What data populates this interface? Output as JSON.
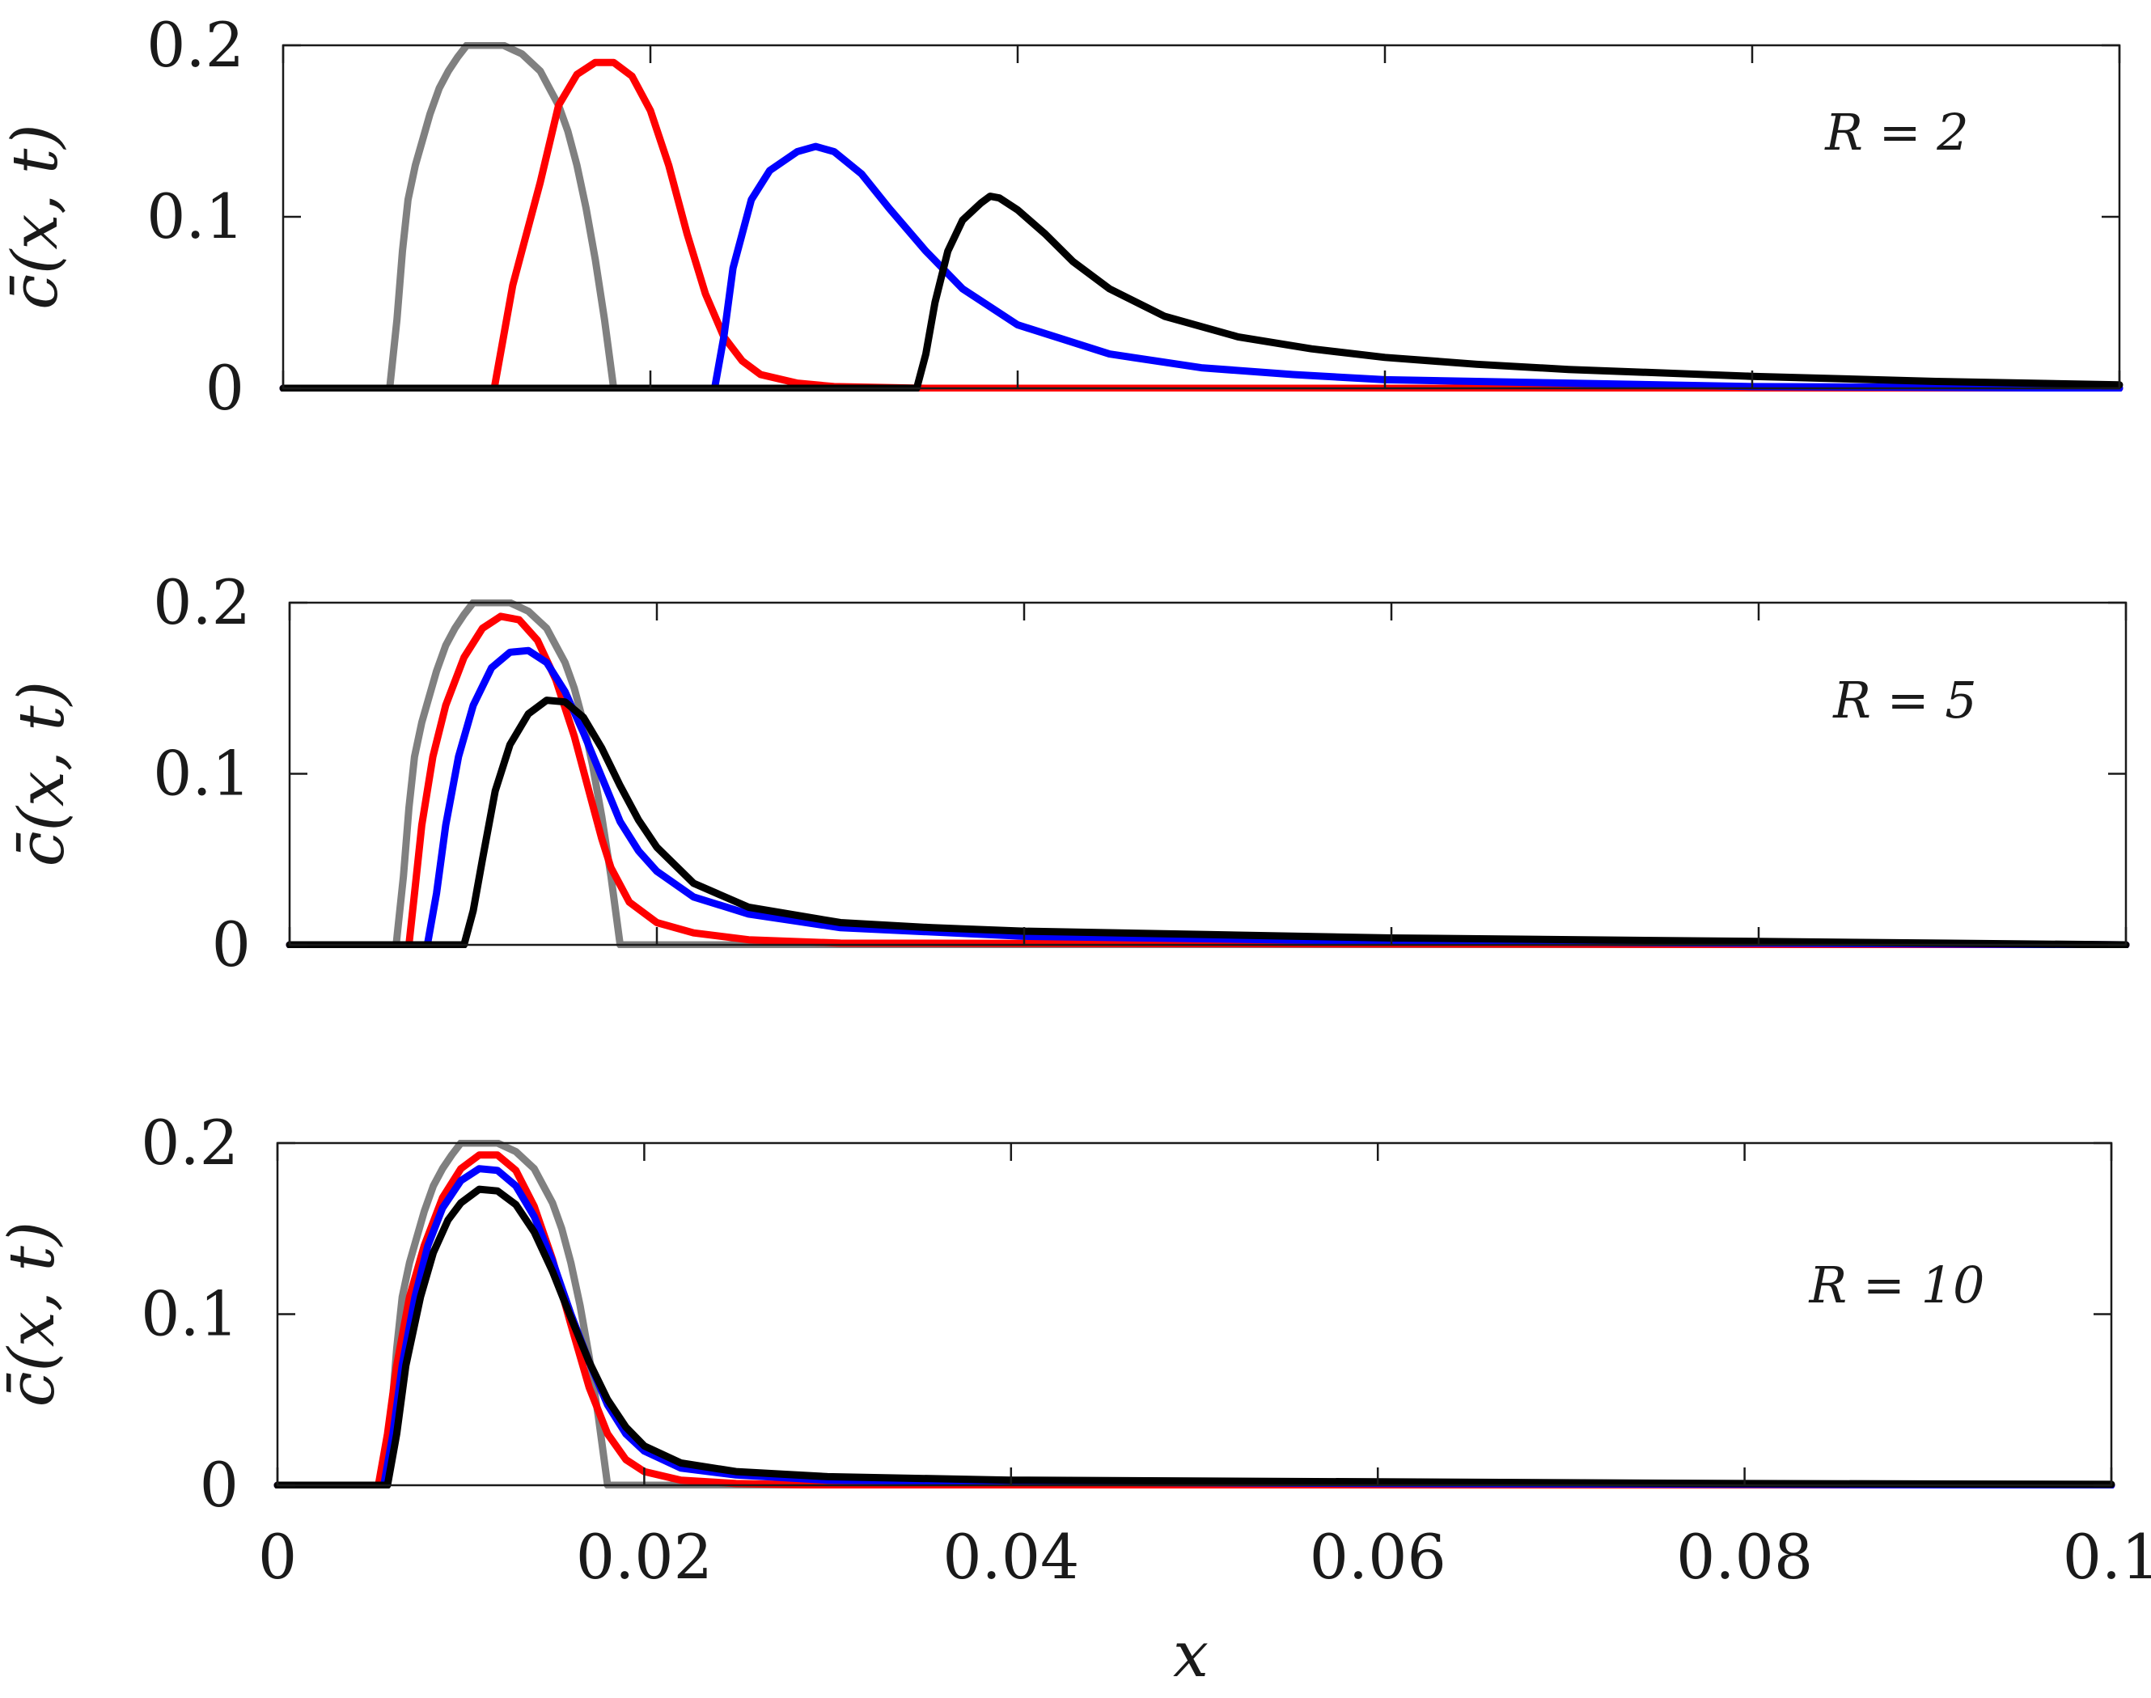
{
  "chart_data": [
    {
      "type": "line",
      "annotation": "R = 2",
      "ylabel": "c̄(x, t)",
      "xlabel": "",
      "xlim": [
        0,
        0.1
      ],
      "ylim": [
        0,
        0.2
      ],
      "xticks": [
        0,
        0.02,
        0.04,
        0.06,
        0.08,
        0.1
      ],
      "yticks": [
        0,
        0.1,
        0.2
      ],
      "ytick_labels": [
        "0",
        "0.1",
        "0.2"
      ],
      "series": [
        {
          "name": "initial (gray)",
          "color": "#808080",
          "x": [
            0,
            0.0058,
            0.0062,
            0.0065,
            0.0068,
            0.0072,
            0.0076,
            0.008,
            0.0085,
            0.009,
            0.0095,
            0.01,
            0.011,
            0.012,
            0.013,
            0.014,
            0.0145,
            0.015,
            0.0155,
            0.016,
            0.0165,
            0.017,
            0.0175,
            0.018,
            0.1
          ],
          "y": [
            0,
            0,
            0.04,
            0.08,
            0.11,
            0.13,
            0.145,
            0.16,
            0.175,
            0.185,
            0.193,
            0.2,
            0.2,
            0.2,
            0.195,
            0.185,
            0.175,
            0.165,
            0.15,
            0.13,
            0.105,
            0.075,
            0.04,
            0,
            0
          ]
        },
        {
          "name": "red",
          "color": "#ff0000",
          "x": [
            0,
            0.0115,
            0.012,
            0.0125,
            0.013,
            0.014,
            0.015,
            0.016,
            0.017,
            0.018,
            0.019,
            0.02,
            0.021,
            0.022,
            0.023,
            0.024,
            0.025,
            0.026,
            0.028,
            0.03,
            0.035,
            0.1
          ],
          "y": [
            0,
            0,
            0.03,
            0.06,
            0.08,
            0.12,
            0.165,
            0.183,
            0.19,
            0.19,
            0.182,
            0.162,
            0.13,
            0.09,
            0.055,
            0.03,
            0.016,
            0.008,
            0.003,
            0.001,
            0,
            0
          ]
        },
        {
          "name": "blue",
          "color": "#0000ff",
          "x": [
            0,
            0.0235,
            0.024,
            0.0245,
            0.0255,
            0.0265,
            0.028,
            0.029,
            0.03,
            0.0315,
            0.033,
            0.035,
            0.037,
            0.04,
            0.045,
            0.05,
            0.055,
            0.06,
            0.07,
            0.08,
            0.09,
            0.1
          ],
          "y": [
            0,
            0,
            0.03,
            0.07,
            0.11,
            0.127,
            0.138,
            0.141,
            0.138,
            0.125,
            0.105,
            0.08,
            0.058,
            0.037,
            0.02,
            0.012,
            0.008,
            0.005,
            0.003,
            0.001,
            0.0005,
            0
          ]
        },
        {
          "name": "black",
          "color": "#000000",
          "x": [
            0,
            0.0345,
            0.035,
            0.0355,
            0.0362,
            0.037,
            0.038,
            0.0385,
            0.039,
            0.04,
            0.0415,
            0.043,
            0.045,
            0.048,
            0.052,
            0.056,
            0.06,
            0.065,
            0.07,
            0.08,
            0.09,
            0.1
          ],
          "y": [
            0,
            0,
            0.02,
            0.05,
            0.08,
            0.098,
            0.108,
            0.112,
            0.111,
            0.104,
            0.09,
            0.074,
            0.058,
            0.042,
            0.03,
            0.023,
            0.018,
            0.014,
            0.011,
            0.007,
            0.004,
            0.002
          ]
        }
      ]
    },
    {
      "type": "line",
      "annotation": "R = 5",
      "ylabel": "c̄(x, t)",
      "xlabel": "",
      "xlim": [
        0,
        0.1
      ],
      "ylim": [
        0,
        0.2
      ],
      "xticks": [
        0,
        0.02,
        0.04,
        0.06,
        0.08,
        0.1
      ],
      "yticks": [
        0,
        0.1,
        0.2
      ],
      "ytick_labels": [
        "0",
        "0.1",
        "0.2"
      ],
      "series": [
        {
          "name": "initial (gray)",
          "color": "#808080",
          "x": [
            0,
            0.0058,
            0.0062,
            0.0065,
            0.0068,
            0.0072,
            0.0076,
            0.008,
            0.0085,
            0.009,
            0.0095,
            0.01,
            0.011,
            0.012,
            0.013,
            0.014,
            0.0145,
            0.015,
            0.0155,
            0.016,
            0.0165,
            0.017,
            0.0175,
            0.018,
            0.1
          ],
          "y": [
            0,
            0,
            0.04,
            0.08,
            0.11,
            0.13,
            0.145,
            0.16,
            0.175,
            0.185,
            0.193,
            0.2,
            0.2,
            0.2,
            0.195,
            0.185,
            0.175,
            0.165,
            0.15,
            0.13,
            0.105,
            0.075,
            0.04,
            0,
            0
          ]
        },
        {
          "name": "red",
          "color": "#ff0000",
          "x": [
            0,
            0.0065,
            0.0068,
            0.0072,
            0.0078,
            0.0085,
            0.0095,
            0.0105,
            0.0115,
            0.0125,
            0.0135,
            0.0145,
            0.0155,
            0.0165,
            0.017,
            0.0175,
            0.0185,
            0.02,
            0.022,
            0.025,
            0.03,
            0.1
          ],
          "y": [
            0,
            0,
            0.03,
            0.07,
            0.11,
            0.14,
            0.168,
            0.185,
            0.192,
            0.19,
            0.178,
            0.155,
            0.122,
            0.082,
            0.062,
            0.045,
            0.025,
            0.013,
            0.007,
            0.003,
            0.001,
            0
          ]
        },
        {
          "name": "blue",
          "color": "#0000ff",
          "x": [
            0,
            0.0075,
            0.008,
            0.0085,
            0.0092,
            0.01,
            0.011,
            0.012,
            0.013,
            0.014,
            0.015,
            0.016,
            0.017,
            0.018,
            0.019,
            0.02,
            0.022,
            0.025,
            0.03,
            0.04,
            0.06,
            0.08,
            0.1
          ],
          "y": [
            0,
            0,
            0.03,
            0.07,
            0.11,
            0.14,
            0.162,
            0.171,
            0.172,
            0.165,
            0.148,
            0.124,
            0.098,
            0.072,
            0.055,
            0.043,
            0.028,
            0.018,
            0.01,
            0.005,
            0.002,
            0.001,
            0
          ]
        },
        {
          "name": "black",
          "color": "#000000",
          "x": [
            0,
            0.0095,
            0.01,
            0.0105,
            0.0112,
            0.012,
            0.013,
            0.014,
            0.015,
            0.016,
            0.017,
            0.018,
            0.019,
            0.02,
            0.022,
            0.025,
            0.03,
            0.035,
            0.04,
            0.05,
            0.06,
            0.08,
            0.1
          ],
          "y": [
            0,
            0,
            0.02,
            0.05,
            0.09,
            0.117,
            0.135,
            0.143,
            0.142,
            0.133,
            0.115,
            0.093,
            0.073,
            0.057,
            0.036,
            0.022,
            0.013,
            0.01,
            0.008,
            0.006,
            0.004,
            0.002,
            0
          ]
        }
      ]
    },
    {
      "type": "line",
      "annotation": "R = 10",
      "ylabel": "c̄(x, t)",
      "xlabel": "x",
      "xlim": [
        0,
        0.1
      ],
      "ylim": [
        0,
        0.2
      ],
      "xticks": [
        0,
        0.02,
        0.04,
        0.06,
        0.08,
        0.1
      ],
      "xtick_labels": [
        "0",
        "0.02",
        "0.04",
        "0.06",
        "0.08",
        "0.1"
      ],
      "yticks": [
        0,
        0.1,
        0.2
      ],
      "ytick_labels": [
        "0",
        "0.1",
        "0.2"
      ],
      "series": [
        {
          "name": "initial (gray)",
          "color": "#808080",
          "x": [
            0,
            0.0058,
            0.0062,
            0.0065,
            0.0068,
            0.0072,
            0.0076,
            0.008,
            0.0085,
            0.009,
            0.0095,
            0.01,
            0.011,
            0.012,
            0.013,
            0.014,
            0.0145,
            0.015,
            0.0155,
            0.016,
            0.0165,
            0.017,
            0.0175,
            0.018,
            0.1
          ],
          "y": [
            0,
            0,
            0.04,
            0.08,
            0.11,
            0.13,
            0.145,
            0.16,
            0.175,
            0.185,
            0.193,
            0.2,
            0.2,
            0.2,
            0.195,
            0.185,
            0.175,
            0.165,
            0.15,
            0.13,
            0.105,
            0.075,
            0.04,
            0,
            0
          ]
        },
        {
          "name": "red",
          "color": "#ff0000",
          "x": [
            0,
            0.0055,
            0.006,
            0.0065,
            0.0072,
            0.008,
            0.009,
            0.01,
            0.011,
            0.012,
            0.013,
            0.014,
            0.015,
            0.016,
            0.017,
            0.018,
            0.019,
            0.02,
            0.022,
            0.025,
            0.03,
            0.1
          ],
          "y": [
            0,
            0,
            0.03,
            0.07,
            0.11,
            0.14,
            0.168,
            0.185,
            0.193,
            0.193,
            0.184,
            0.163,
            0.132,
            0.094,
            0.057,
            0.03,
            0.015,
            0.008,
            0.003,
            0.001,
            0,
            0
          ]
        },
        {
          "name": "blue",
          "color": "#0000ff",
          "x": [
            0,
            0.0058,
            0.0063,
            0.0068,
            0.0075,
            0.0082,
            0.009,
            0.01,
            0.011,
            0.012,
            0.013,
            0.014,
            0.015,
            0.016,
            0.017,
            0.018,
            0.019,
            0.02,
            0.022,
            0.025,
            0.03,
            0.04,
            0.06,
            0.08,
            0.1
          ],
          "y": [
            0,
            0,
            0.03,
            0.07,
            0.11,
            0.14,
            0.162,
            0.178,
            0.185,
            0.184,
            0.175,
            0.157,
            0.131,
            0.1,
            0.072,
            0.047,
            0.03,
            0.02,
            0.01,
            0.006,
            0.003,
            0.002,
            0.001,
            0.0005,
            0
          ]
        },
        {
          "name": "black",
          "color": "#000000",
          "x": [
            0,
            0.006,
            0.0065,
            0.007,
            0.0078,
            0.0085,
            0.0093,
            0.01,
            0.011,
            0.012,
            0.013,
            0.014,
            0.015,
            0.016,
            0.017,
            0.018,
            0.019,
            0.02,
            0.022,
            0.025,
            0.03,
            0.04,
            0.06,
            0.08,
            0.1
          ],
          "y": [
            0,
            0,
            0.03,
            0.07,
            0.11,
            0.136,
            0.155,
            0.165,
            0.173,
            0.172,
            0.164,
            0.148,
            0.125,
            0.098,
            0.072,
            0.05,
            0.034,
            0.023,
            0.013,
            0.008,
            0.005,
            0.003,
            0.002,
            0.001,
            0.0005
          ]
        }
      ]
    }
  ]
}
